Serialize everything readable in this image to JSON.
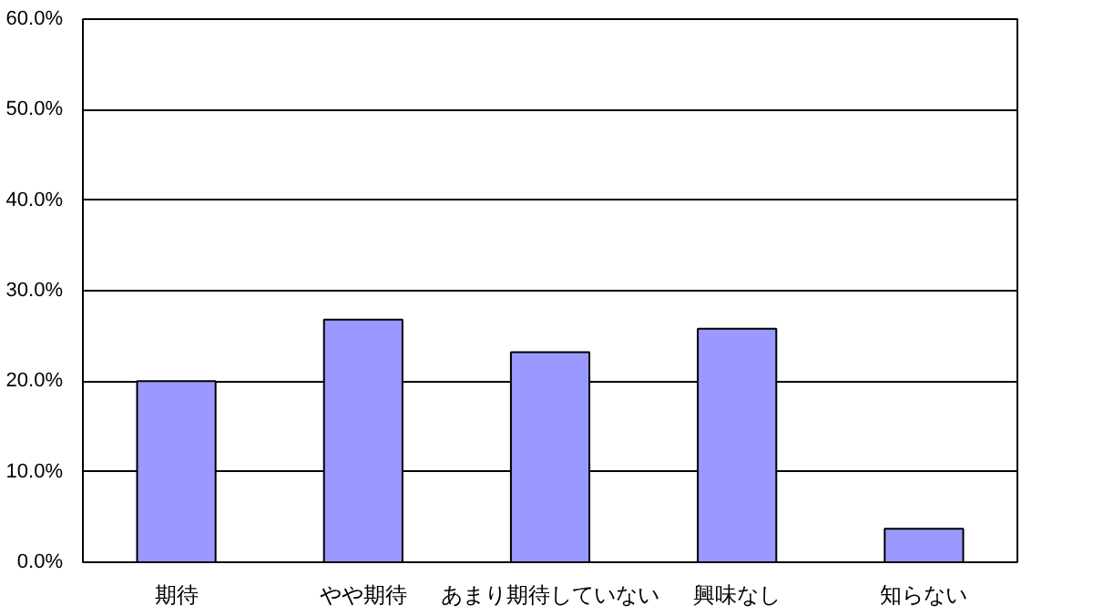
{
  "chart_data": {
    "type": "bar",
    "categories": [
      "期待",
      "やや期待",
      "あまり期待していない",
      "興味なし",
      "知らない"
    ],
    "values": [
      20.0,
      26.8,
      23.2,
      25.8,
      3.7
    ],
    "color": "#9999ff",
    "ylim": [
      0,
      60
    ],
    "yticks": [
      {
        "value": 0,
        "label": "0.0%"
      },
      {
        "value": 10,
        "label": "10.0%"
      },
      {
        "value": 20,
        "label": "20.0%"
      },
      {
        "value": 30,
        "label": "30.0%"
      },
      {
        "value": 40,
        "label": "40.0%"
      },
      {
        "value": 50,
        "label": "50.0%"
      },
      {
        "value": 60,
        "label": "60.0%"
      }
    ],
    "grid": "y"
  }
}
